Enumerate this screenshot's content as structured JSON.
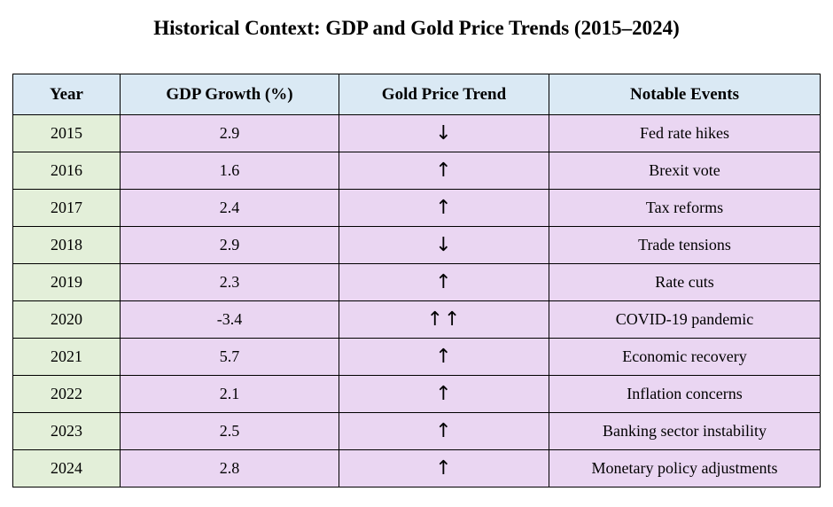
{
  "title": "Historical Context: GDP and Gold Price Trends (2015–2024)",
  "colors": {
    "header_bg": "#dae9f4",
    "year_cell_bg": "#e3efd9",
    "data_cell_bg": "#ead6f2",
    "border": "#000000"
  },
  "chart_data": {
    "type": "table",
    "title": "Historical Context: GDP and Gold Price Trends (2015–2024)",
    "columns": [
      "Year",
      "GDP Growth (%)",
      "Gold Price Trend",
      "Notable Events"
    ],
    "rows": [
      [
        "2015",
        "2.9",
        "↓",
        "Fed rate hikes"
      ],
      [
        "2016",
        "1.6",
        "↑",
        "Brexit vote"
      ],
      [
        "2017",
        "2.4",
        "↑",
        "Tax reforms"
      ],
      [
        "2018",
        "2.9",
        "↓",
        "Trade tensions"
      ],
      [
        "2019",
        "2.3",
        "↑",
        "Rate cuts"
      ],
      [
        "2020",
        "-3.4",
        "↑↑",
        "COVID-19 pandemic"
      ],
      [
        "2021",
        "5.7",
        "↑",
        "Economic recovery"
      ],
      [
        "2022",
        "2.1",
        "↑",
        "Inflation concerns"
      ],
      [
        "2023",
        "2.5",
        "↑",
        "Banking sector instability"
      ],
      [
        "2024",
        "2.8",
        "↑",
        "Monetary policy adjustments"
      ]
    ]
  }
}
